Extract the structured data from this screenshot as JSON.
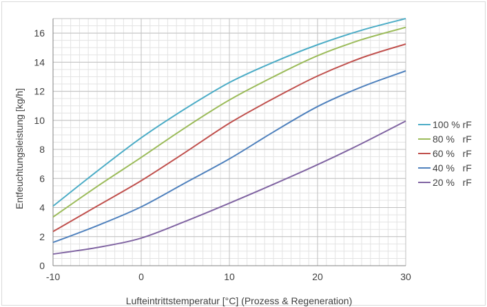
{
  "chart_data": {
    "type": "line",
    "xlabel": "Lufteintrittstemperatur [°C] (Prozess & Regeneration)",
    "ylabel": "Entfeuchtungsleistung [kg/h]",
    "xlim": [
      -10,
      30
    ],
    "ylim": [
      0,
      17
    ],
    "x_ticks": [
      "-10",
      "0",
      "10",
      "20",
      "30"
    ],
    "y_ticks": [
      "0",
      "2",
      "4",
      "6",
      "8",
      "10",
      "12",
      "14",
      "16"
    ],
    "x_tick_values": [
      -10,
      0,
      10,
      20,
      30
    ],
    "y_tick_values": [
      0,
      2,
      4,
      6,
      8,
      10,
      12,
      14,
      16
    ],
    "minor_grid_x_step": 1,
    "minor_grid_y_step": 0.5,
    "grid": true,
    "legend_position": "right",
    "series": [
      {
        "name": "100 % rF",
        "color": "#4bacc6",
        "x": [
          -10,
          -5,
          0,
          5,
          10,
          15,
          20,
          25,
          30
        ],
        "y": [
          4.1,
          6.5,
          8.8,
          10.8,
          12.6,
          14.0,
          15.2,
          16.2,
          17.0
        ]
      },
      {
        "name": "80 %   rF",
        "color": "#9bbb59",
        "x": [
          -10,
          -5,
          0,
          5,
          10,
          15,
          20,
          25,
          30
        ],
        "y": [
          3.35,
          5.45,
          7.45,
          9.5,
          11.4,
          13.0,
          14.45,
          15.55,
          16.4
        ]
      },
      {
        "name": "60 %   rF",
        "color": "#c0504d",
        "x": [
          -10,
          -5,
          0,
          5,
          10,
          15,
          20,
          25,
          30
        ],
        "y": [
          2.35,
          4.1,
          5.85,
          7.8,
          9.8,
          11.5,
          13.05,
          14.3,
          15.25
        ]
      },
      {
        "name": "40 %   rF",
        "color": "#4f81bd",
        "x": [
          -10,
          -5,
          0,
          5,
          10,
          15,
          20,
          25,
          30
        ],
        "y": [
          1.6,
          2.75,
          4.05,
          5.7,
          7.35,
          9.2,
          10.95,
          12.3,
          13.4
        ]
      },
      {
        "name": "20 %   rF",
        "color": "#8064a2",
        "x": [
          -10,
          -5,
          0,
          5,
          10,
          15,
          20,
          25,
          30
        ],
        "y": [
          0.8,
          1.25,
          1.9,
          3.05,
          4.3,
          5.6,
          6.95,
          8.4,
          9.95
        ]
      }
    ]
  }
}
